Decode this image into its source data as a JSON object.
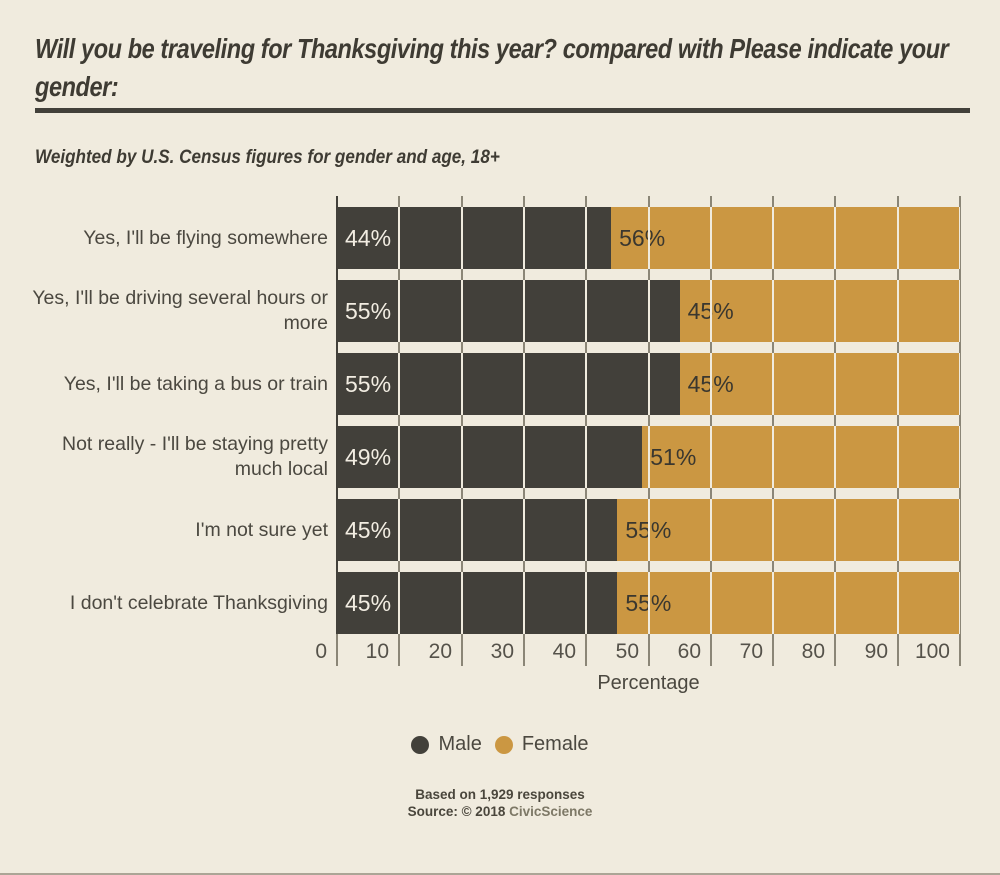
{
  "header": {
    "title_line1": "Will you be traveling for Thanksgiving this year? compared with Please indicate your",
    "title_line2": "gender:",
    "subtitle": "Weighted by U.S. Census figures for gender and age, 18+"
  },
  "chart_data": {
    "type": "bar",
    "stacked": true,
    "orientation": "horizontal",
    "categories": [
      "Yes, I'll be flying somewhere",
      "Yes, I'll be driving several hours or more",
      "Yes, I'll be taking a bus or train",
      "Not really - I'll be staying pretty much local",
      "I'm not sure yet",
      "I don't celebrate Thanksgiving"
    ],
    "series": [
      {
        "name": "Male",
        "color": "#42403a",
        "values": [
          44,
          55,
          55,
          49,
          45,
          45
        ]
      },
      {
        "name": "Female",
        "color": "#cb9742",
        "values": [
          56,
          45,
          45,
          51,
          55,
          55
        ]
      }
    ],
    "value_suffix": "%",
    "xlabel": "Percentage",
    "xlim": [
      0,
      100
    ],
    "xticks": [
      0,
      10,
      20,
      30,
      40,
      50,
      60,
      70,
      80,
      90,
      100
    ],
    "grid": true,
    "legend_position": "bottom"
  },
  "footer": {
    "responses": "Based on 1,929 responses",
    "source_prefix": "Source: © 2018 ",
    "source_brand": "CivicScience"
  },
  "colors": {
    "background": "#f0ebde",
    "male": "#42403a",
    "female": "#cb9742",
    "title": "#3e3b33",
    "text": "#4b4840",
    "grid": "#8b8677",
    "value_label_light": "#f2ede2",
    "value_label_dark": "#3a372f"
  }
}
